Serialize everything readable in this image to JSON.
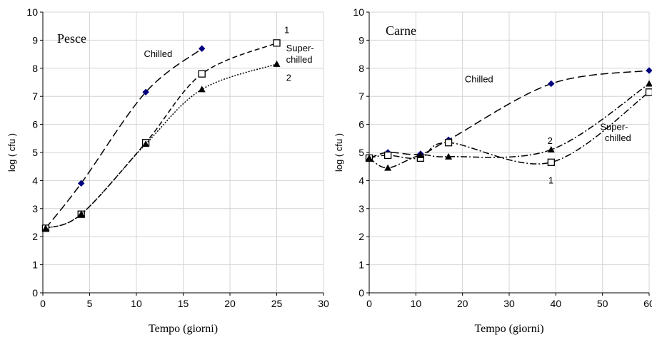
{
  "chart_data": [
    {
      "type": "line",
      "title": "Pesce",
      "xlabel": "Tempo (giorni)",
      "ylabel": "log ( cfu )",
      "xlim": [
        0,
        30
      ],
      "ylim": [
        0,
        10
      ],
      "x_ticks": [
        0,
        5,
        10,
        15,
        20,
        25,
        30
      ],
      "y_ticks": [
        0,
        1,
        2,
        3,
        4,
        5,
        6,
        7,
        8,
        9,
        10
      ],
      "grid": true,
      "series": [
        {
          "name": "Chilled",
          "marker": "diamond",
          "color": "#000080",
          "line_style": "long-dash",
          "points": [
            [
              0.3,
              2.3
            ],
            [
              4.1,
              3.9
            ],
            [
              11,
              7.15
            ],
            [
              17,
              8.7
            ]
          ]
        },
        {
          "name": "1",
          "marker": "open-square",
          "color": "#000000",
          "line_style": "dash",
          "points": [
            [
              0.3,
              2.3
            ],
            [
              4.1,
              2.8
            ],
            [
              11,
              5.35
            ],
            [
              17,
              7.8
            ],
            [
              25,
              8.9
            ]
          ]
        },
        {
          "name": "2",
          "marker": "triangle",
          "color": "#000000",
          "line_style": "dot",
          "points": [
            [
              0.3,
              2.3
            ],
            [
              4.1,
              2.8
            ],
            [
              11,
              5.3
            ],
            [
              17,
              7.25
            ],
            [
              25,
              8.15
            ]
          ]
        }
      ],
      "annotations": [
        {
          "text": "Chilled",
          "x": 10.8,
          "y": 8.4
        },
        {
          "text": "1",
          "x": 25.8,
          "y": 9.25
        },
        {
          "text": "Super-",
          "x": 26.0,
          "y": 8.6
        },
        {
          "text": "chilled",
          "x": 26.0,
          "y": 8.2
        },
        {
          "text": "2",
          "x": 26.0,
          "y": 7.55
        }
      ]
    },
    {
      "type": "line",
      "title": "Carne",
      "xlabel": "Tempo (giorni)",
      "ylabel": "log ( cfu )",
      "xlim": [
        0,
        60
      ],
      "ylim": [
        0,
        10
      ],
      "x_ticks": [
        0,
        10,
        20,
        30,
        40,
        50,
        60
      ],
      "x_tick_labels": [
        "0",
        "10",
        "20",
        "30",
        "40",
        "50",
        "60"
      ],
      "y_ticks": [
        0,
        1,
        2,
        3,
        4,
        5,
        6,
        7,
        8,
        9,
        10
      ],
      "grid": true,
      "series": [
        {
          "name": "Chilled",
          "marker": "diamond",
          "color": "#000080",
          "line_style": "long-dash",
          "points": [
            [
              0,
              4.8
            ],
            [
              4,
              5.0
            ],
            [
              11,
              4.95
            ],
            [
              17,
              5.45
            ],
            [
              39,
              7.45
            ],
            [
              60,
              7.92
            ]
          ]
        },
        {
          "name": "1",
          "marker": "open-square",
          "color": "#000000",
          "line_style": "dash-dot",
          "points": [
            [
              0,
              4.8
            ],
            [
              4,
              4.9
            ],
            [
              11,
              4.8
            ],
            [
              17,
              5.35
            ],
            [
              39,
              4.65
            ],
            [
              60,
              7.15
            ]
          ]
        },
        {
          "name": "2",
          "marker": "triangle",
          "color": "#000000",
          "line_style": "dash-dot",
          "points": [
            [
              0,
              4.8
            ],
            [
              4,
              4.45
            ],
            [
              11,
              4.9
            ],
            [
              17,
              4.85
            ],
            [
              39,
              5.1
            ],
            [
              60,
              7.45
            ]
          ]
        }
      ],
      "annotations": [
        {
          "text": "Chilled",
          "x": 20.5,
          "y": 7.5
        },
        {
          "text": "2",
          "x": 38.2,
          "y": 5.3
        },
        {
          "text": "1",
          "x": 38.4,
          "y": 3.9
        },
        {
          "text": "Super-",
          "x": 49.5,
          "y": 5.8
        },
        {
          "text": "chilled",
          "x": 50.5,
          "y": 5.4
        }
      ]
    }
  ]
}
